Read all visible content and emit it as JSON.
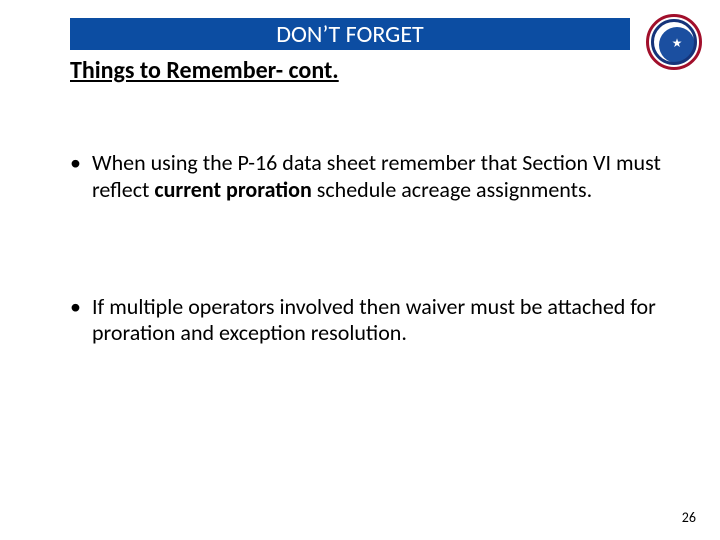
{
  "colors": {
    "title_bar_bg": "#0c4da2",
    "logo_outer_border": "#a10f2b",
    "logo_inner_border": "#16347a",
    "logo_inner_fill": "#1b4fa0"
  },
  "header": {
    "title": "DON’T FORGET",
    "subtitle": "Things to Remember- cont."
  },
  "bullets": [
    {
      "pre": "When using the P-16 data sheet remember that Section VI must reflect ",
      "bold": "current proration ",
      "post": "schedule acreage assignments."
    },
    {
      "pre": "If multiple operators involved then waiver must be attached for proration and exception resolution.",
      "bold": "",
      "post": ""
    }
  ],
  "page_number": "26"
}
